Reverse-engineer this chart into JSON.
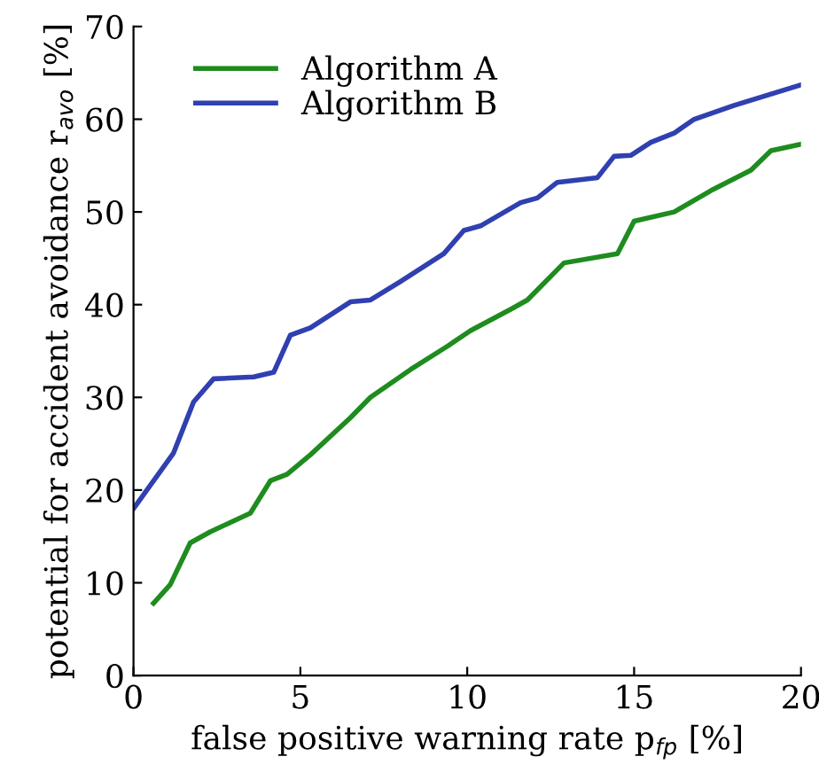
{
  "chart_data": {
    "type": "line",
    "xlabel": "false positive warning rate p$_{fp}$ [%]",
    "ylabel": "potential for accident avoidance r$_{avo}$ [%]",
    "xlim": [
      0,
      20
    ],
    "ylim": [
      0,
      70
    ],
    "xticks": [
      0,
      5,
      10,
      15,
      20
    ],
    "yticks": [
      0,
      10,
      20,
      30,
      40,
      50,
      60,
      70
    ],
    "grid": false,
    "legend": "top left",
    "line_style": "solid",
    "marker": "none",
    "series": [
      {
        "name": "Algorithm A",
        "color": "#1e8c1e",
        "x": [
          0.6,
          1.1,
          1.7,
          2.3,
          2.9,
          3.5,
          4.1,
          4.6,
          5.3,
          6.5,
          7.1,
          8.3,
          9.4,
          10.1,
          11.3,
          11.8,
          12.9,
          14.5,
          15,
          16.2,
          17.3,
          18.5,
          19.1,
          20
        ],
        "values": [
          7.8,
          9.8,
          14.3,
          15.5,
          16.5,
          17.5,
          21,
          21.7,
          23.8,
          27.8,
          30,
          33,
          35.5,
          37.2,
          39.5,
          40.5,
          44.5,
          45.5,
          49,
          50,
          52.3,
          54.5,
          56.6,
          57.3
        ]
      },
      {
        "name": "Algorithm B",
        "color": "#3040b0",
        "x": [
          0,
          1.2,
          1.8,
          2.4,
          3.6,
          4.2,
          4.7,
          5.3,
          6.5,
          7.1,
          8,
          9.3,
          9.9,
          10.4,
          11.6,
          12.1,
          12.7,
          13.9,
          14.4,
          14.9,
          15.5,
          16.2,
          16.8,
          18,
          20
        ],
        "values": [
          18,
          24,
          29.5,
          32,
          32.2,
          32.7,
          36.7,
          37.5,
          40.3,
          40.5,
          42.5,
          45.5,
          48,
          48.5,
          51,
          51.5,
          53.2,
          53.7,
          56,
          56.1,
          57.5,
          58.5,
          60,
          61.5,
          63.7
        ]
      }
    ]
  }
}
